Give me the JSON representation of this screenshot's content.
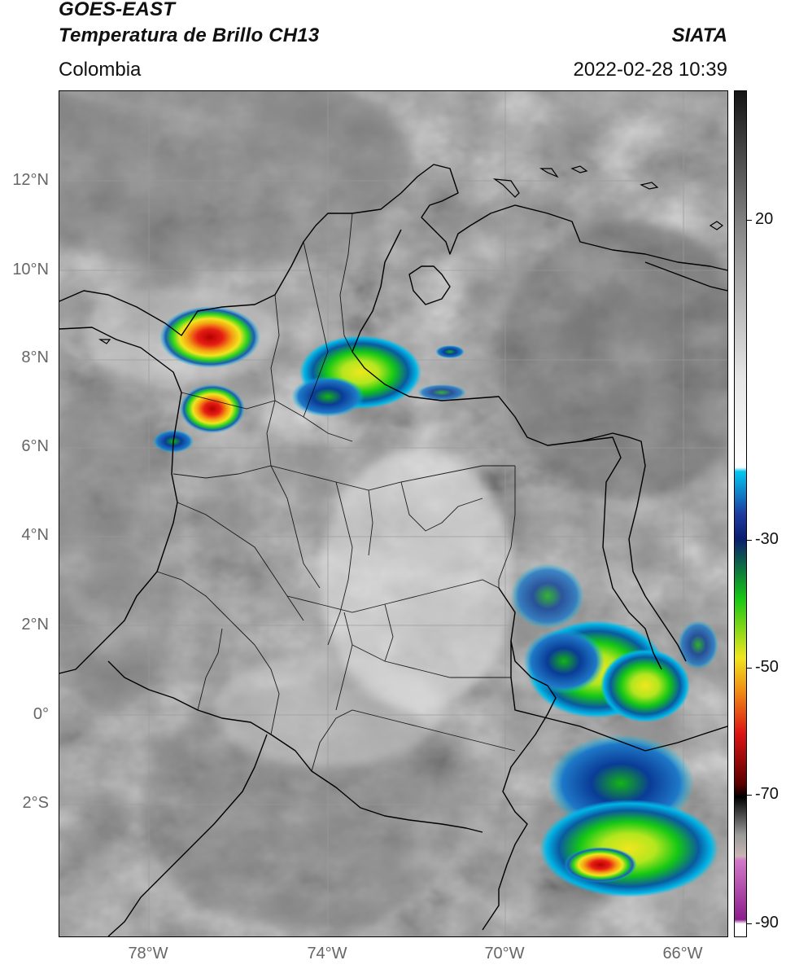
{
  "header": {
    "title_line1": "GOES-EAST",
    "title_line2": "Temperatura de Brillo CH13",
    "brand": "SIATA",
    "region": "Colombia",
    "timestamp": "2022-02-28 10:39"
  },
  "map": {
    "lat_labels": [
      "12°N",
      "10°N",
      "8°N",
      "6°N",
      "4°N",
      "2°N",
      "0°",
      "2°S"
    ],
    "lon_labels": [
      "78°W",
      "74°W",
      "70°W",
      "66°W"
    ]
  },
  "colorbar": {
    "tick_labels": [
      "20",
      "-30",
      "-50",
      "-70",
      "-90"
    ],
    "colors": {
      "warm_top": "#141414",
      "gray_mid": "#8c8c8c",
      "gray_light": "#e6e6e6",
      "white": "#ffffff",
      "cyan": "#00c8f0",
      "blue": "#1e3ca0",
      "navy": "#0a1e6e",
      "green": "#14c814",
      "yellow": "#f0e61e",
      "orange": "#f08c14",
      "red": "#dc1414",
      "dark_red": "#5a0000",
      "black": "#000000",
      "pink": "#d278c8",
      "purple": "#8c1e8c"
    }
  }
}
